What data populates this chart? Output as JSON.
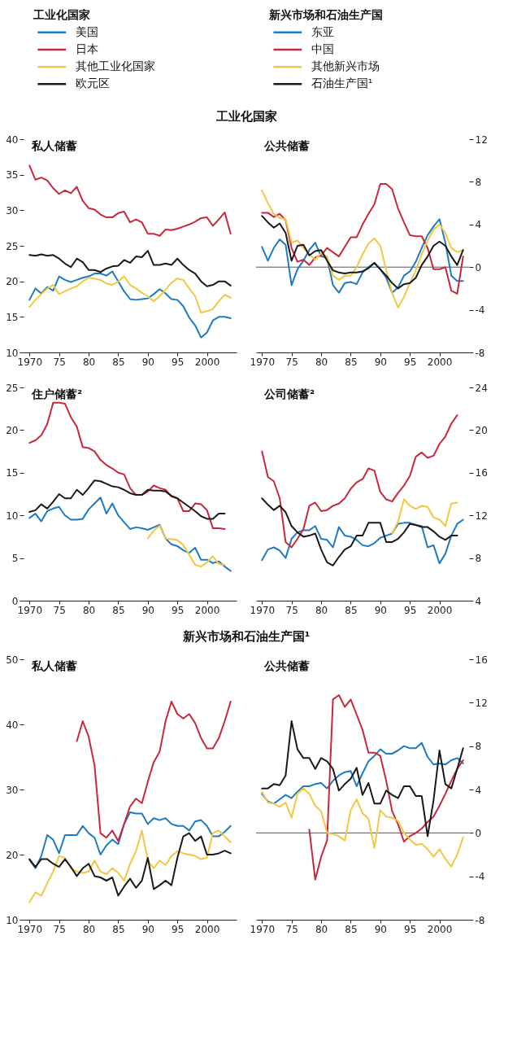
{
  "chart_data": [
    {
      "type": "line",
      "title": "私人储蓄",
      "annotations": [
        "工业化国家"
      ],
      "legend": "top",
      "legend_title": "工业化国家",
      "x": [
        1970,
        1971,
        1972,
        1973,
        1974,
        1975,
        1976,
        1977,
        1978,
        1979,
        1980,
        1981,
        1982,
        1983,
        1984,
        1985,
        1986,
        1987,
        1988,
        1989,
        1990,
        1991,
        1992,
        1993,
        1994,
        1995,
        1996,
        1997,
        1998,
        1999,
        2000,
        2001,
        2002,
        2003,
        2004
      ],
      "xlim": [
        1969,
        2005
      ],
      "xticks": [
        1970,
        {
          "value": 1975,
          "label": "75"
        },
        {
          "value": 1980,
          "label": "80"
        },
        {
          "value": 1985,
          "label": "85"
        },
        {
          "value": 1990,
          "label": "90"
        },
        {
          "value": 1995,
          "label": "95"
        },
        2000
      ],
      "ylim": [
        10,
        40
      ],
      "yticks": [
        10,
        15,
        20,
        25,
        30,
        35,
        40
      ],
      "series": [
        {
          "name": "美国",
          "color": "#1f7bc1",
          "values": [
            17.4,
            19.0,
            18.3,
            19.2,
            18.7,
            20.7,
            20.2,
            19.9,
            20.2,
            20.5,
            20.7,
            21.1,
            21.1,
            20.8,
            21.4,
            20.0,
            18.6,
            17.5,
            17.4,
            17.5,
            17.6,
            18.2,
            18.9,
            18.3,
            17.5,
            17.4,
            16.5,
            14.9,
            13.8,
            12.1,
            12.8,
            14.5,
            15.0,
            15.0,
            14.8
          ]
        },
        {
          "name": "日本",
          "color": "#c8283c",
          "values": [
            36.3,
            34.3,
            34.6,
            34.2,
            33.1,
            32.3,
            32.8,
            32.4,
            33.3,
            31.3,
            30.3,
            30.1,
            29.4,
            29.0,
            29.0,
            29.6,
            29.8,
            28.3,
            28.7,
            28.3,
            26.7,
            26.7,
            26.4,
            27.3,
            27.2,
            27.4,
            27.7,
            28.0,
            28.4,
            28.9,
            29.0,
            27.8,
            28.7,
            29.7,
            26.7
          ]
        },
        {
          "name": "其他工业化国家",
          "color": "#f2c744",
          "values": [
            16.4,
            17.4,
            18.2,
            19.0,
            19.5,
            18.2,
            18.6,
            19.0,
            19.3,
            20.0,
            20.5,
            20.4,
            20.2,
            19.7,
            19.5,
            20.0,
            20.7,
            19.5,
            19.0,
            18.4,
            17.9,
            17.2,
            17.9,
            18.8,
            19.8,
            20.4,
            20.2,
            19.0,
            17.9,
            15.6,
            15.8,
            16.1,
            17.2,
            18.1,
            17.7
          ]
        },
        {
          "name": "欧元区",
          "color": "#1a1a1a",
          "values": [
            23.7,
            23.6,
            23.8,
            23.6,
            23.7,
            23.2,
            22.5,
            22.0,
            23.2,
            22.7,
            21.6,
            21.6,
            21.3,
            21.8,
            22.1,
            22.2,
            23.0,
            22.6,
            23.5,
            23.4,
            24.3,
            22.3,
            22.3,
            22.5,
            22.3,
            23.2,
            22.3,
            21.6,
            21.1,
            20.0,
            19.3,
            19.5,
            20.0,
            20.0,
            19.4
          ]
        }
      ]
    },
    {
      "type": "line",
      "title": "公共储蓄",
      "x": [
        1970,
        1971,
        1972,
        1973,
        1974,
        1975,
        1976,
        1977,
        1978,
        1979,
        1980,
        1981,
        1982,
        1983,
        1984,
        1985,
        1986,
        1987,
        1988,
        1989,
        1990,
        1991,
        1992,
        1993,
        1994,
        1995,
        1996,
        1997,
        1998,
        1999,
        2000,
        2001,
        2002,
        2003,
        2004
      ],
      "xlim": [
        1969,
        2005
      ],
      "xticks": [
        1970,
        {
          "value": 1975,
          "label": "75"
        },
        {
          "value": 1980,
          "label": "80"
        },
        {
          "value": 1985,
          "label": "85"
        },
        {
          "value": 1990,
          "label": "90"
        },
        {
          "value": 1995,
          "label": "95"
        },
        2000
      ],
      "ylim": [
        -8,
        12
      ],
      "yticks": [
        -8,
        -4,
        0,
        4,
        8,
        12
      ],
      "ref_lines": [
        {
          "axis": "y",
          "value": 0
        }
      ],
      "series": [
        {
          "color": "#1f7bc1",
          "values": [
            1.9,
            0.6,
            1.8,
            2.6,
            2.1,
            -1.7,
            -0.2,
            0.6,
            1.6,
            2.3,
            1.0,
            0.9,
            -1.7,
            -2.4,
            -1.5,
            -1.4,
            -1.6,
            -0.5,
            0.0,
            0.4,
            -0.2,
            -1.0,
            -2.4,
            -1.9,
            -0.8,
            -0.4,
            0.5,
            1.8,
            3.0,
            3.8,
            4.5,
            2.3,
            -0.8,
            -1.3,
            -1.3
          ]
        },
        {
          "color": "#c8283c",
          "values": [
            5.1,
            5.1,
            4.7,
            5.0,
            4.4,
            1.8,
            0.5,
            0.7,
            0.2,
            0.9,
            1.1,
            1.8,
            1.4,
            1.0,
            1.9,
            2.8,
            2.8,
            4.0,
            5.0,
            5.9,
            7.8,
            7.8,
            7.3,
            5.5,
            4.2,
            3.0,
            2.9,
            2.9,
            1.8,
            -0.2,
            -0.2,
            0.0,
            -2.2,
            -2.5,
            1.0
          ]
        },
        {
          "color": "#f2c744",
          "values": [
            7.2,
            6.0,
            5.0,
            4.6,
            4.5,
            2.3,
            2.5,
            1.8,
            1.2,
            0.7,
            1.3,
            1.0,
            -0.8,
            -1.2,
            -0.8,
            -0.8,
            0.0,
            1.2,
            2.2,
            2.7,
            2.0,
            -0.3,
            -2.4,
            -3.8,
            -2.8,
            -1.5,
            -0.3,
            1.2,
            2.5,
            3.5,
            4.0,
            3.2,
            1.8,
            1.4,
            1.6
          ]
        },
        {
          "color": "#1a1a1a",
          "values": [
            4.8,
            4.2,
            3.7,
            4.1,
            3.2,
            0.6,
            2.0,
            2.1,
            1.1,
            1.5,
            1.6,
            0.6,
            -0.3,
            -0.5,
            -0.6,
            -0.5,
            -0.5,
            -0.4,
            -0.1,
            0.4,
            -0.2,
            -0.8,
            -1.5,
            -2.0,
            -1.6,
            -1.5,
            -1.0,
            0.2,
            1.0,
            2.0,
            2.4,
            2.0,
            1.0,
            0.2,
            1.6
          ]
        }
      ]
    },
    {
      "type": "line",
      "title": "住户储蓄²",
      "x": [
        1970,
        1971,
        1972,
        1973,
        1974,
        1975,
        1976,
        1977,
        1978,
        1979,
        1980,
        1981,
        1982,
        1983,
        1984,
        1985,
        1986,
        1987,
        1988,
        1989,
        1990,
        1991,
        1992,
        1993,
        1994,
        1995,
        1996,
        1997,
        1998,
        1999,
        2000,
        2001,
        2002,
        2003,
        2004
      ],
      "xlim": [
        1969,
        2005
      ],
      "xticks": [
        1970,
        {
          "value": 1975,
          "label": "75"
        },
        {
          "value": 1980,
          "label": "80"
        },
        {
          "value": 1985,
          "label": "85"
        },
        {
          "value": 1990,
          "label": "90"
        },
        {
          "value": 1995,
          "label": "95"
        },
        2000
      ],
      "ylim": [
        0,
        25
      ],
      "yticks": [
        0,
        5,
        10,
        15,
        20,
        25
      ],
      "series": [
        {
          "color": "#1f7bc1",
          "values": [
            9.7,
            10.2,
            9.3,
            10.5,
            10.8,
            11.0,
            10.0,
            9.5,
            9.5,
            9.6,
            10.7,
            11.4,
            12.1,
            10.2,
            11.4,
            10.0,
            9.2,
            8.4,
            8.6,
            8.5,
            8.3,
            8.6,
            8.9,
            7.3,
            6.6,
            6.4,
            5.9,
            5.6,
            6.2,
            4.8,
            4.8,
            4.4,
            4.6,
            4.0,
            3.5
          ]
        },
        {
          "color": "#c8283c",
          "values": [
            18.5,
            18.8,
            19.4,
            20.7,
            23.2,
            23.2,
            23.1,
            21.5,
            20.4,
            18.0,
            17.9,
            17.5,
            16.5,
            15.9,
            15.5,
            15.0,
            14.8,
            13.2,
            12.4,
            12.4,
            12.8,
            13.5,
            13.2,
            13.0,
            12.2,
            12.0,
            10.5,
            10.5,
            11.4,
            11.3,
            10.6,
            8.5,
            8.5,
            8.4,
            null
          ]
        },
        {
          "color": "#f2c744",
          "values": [
            null,
            null,
            null,
            null,
            null,
            null,
            null,
            null,
            null,
            null,
            null,
            null,
            null,
            null,
            null,
            null,
            null,
            null,
            null,
            null,
            7.3,
            8.2,
            8.8,
            7.3,
            7.2,
            7.1,
            6.5,
            5.4,
            4.2,
            4.0,
            4.5,
            5.2,
            4.3,
            4.2,
            null
          ]
        },
        {
          "color": "#1a1a1a",
          "values": [
            10.4,
            10.6,
            11.3,
            10.8,
            11.6,
            12.5,
            12.0,
            12.0,
            13.0,
            12.4,
            13.2,
            14.1,
            14.0,
            13.7,
            13.4,
            13.3,
            13.0,
            12.6,
            12.4,
            12.4,
            13.0,
            12.9,
            12.9,
            12.8,
            12.3,
            12.0,
            11.5,
            11.0,
            10.5,
            9.9,
            9.6,
            9.6,
            10.2,
            10.2,
            null
          ]
        }
      ]
    },
    {
      "type": "line",
      "title": "公司储蓄²",
      "x": [
        1970,
        1971,
        1972,
        1973,
        1974,
        1975,
        1976,
        1977,
        1978,
        1979,
        1980,
        1981,
        1982,
        1983,
        1984,
        1985,
        1986,
        1987,
        1988,
        1989,
        1990,
        1991,
        1992,
        1993,
        1994,
        1995,
        1996,
        1997,
        1998,
        1999,
        2000,
        2001,
        2002,
        2003,
        2004
      ],
      "xlim": [
        1969,
        2005
      ],
      "xticks": [
        1970,
        {
          "value": 1975,
          "label": "75"
        },
        {
          "value": 1980,
          "label": "80"
        },
        {
          "value": 1985,
          "label": "85"
        },
        {
          "value": 1990,
          "label": "90"
        },
        {
          "value": 1995,
          "label": "95"
        },
        2000
      ],
      "ylim": [
        4,
        24
      ],
      "yticks": [
        4,
        8,
        12,
        16,
        20,
        24
      ],
      "series": [
        {
          "color": "#1f7bc1",
          "values": [
            7.8,
            8.8,
            9.0,
            8.7,
            8.0,
            9.8,
            10.4,
            10.6,
            10.6,
            11.0,
            9.8,
            9.7,
            9.0,
            10.9,
            10.1,
            10.0,
            9.7,
            9.2,
            9.1,
            9.4,
            9.9,
            10.1,
            10.3,
            11.2,
            11.3,
            11.3,
            11.1,
            11.0,
            9.0,
            9.2,
            7.5,
            8.4,
            10.1,
            11.2,
            11.6
          ]
        },
        {
          "color": "#c8283c",
          "values": [
            18.0,
            15.6,
            15.2,
            13.6,
            9.5,
            9.0,
            9.8,
            10.7,
            12.9,
            13.2,
            12.4,
            12.5,
            12.9,
            13.1,
            13.6,
            14.5,
            15.1,
            15.4,
            16.4,
            16.2,
            14.2,
            13.5,
            13.3,
            14.1,
            14.8,
            15.7,
            17.5,
            17.9,
            17.4,
            17.6,
            18.7,
            19.4,
            20.6,
            21.4,
            null
          ]
        },
        {
          "color": "#f2c744",
          "values": [
            null,
            null,
            null,
            null,
            null,
            null,
            null,
            null,
            null,
            null,
            null,
            null,
            null,
            null,
            null,
            null,
            null,
            null,
            null,
            null,
            null,
            null,
            10.3,
            11.4,
            13.5,
            12.9,
            12.6,
            12.9,
            12.8,
            11.8,
            11.6,
            11.0,
            13.1,
            13.2,
            null
          ]
        },
        {
          "color": "#1a1a1a",
          "values": [
            13.6,
            13.0,
            12.5,
            12.9,
            12.3,
            11.0,
            10.4,
            10.0,
            10.1,
            10.3,
            8.8,
            7.6,
            7.3,
            8.1,
            8.8,
            9.1,
            10.1,
            10.1,
            11.3,
            11.3,
            11.3,
            9.5,
            9.5,
            9.8,
            10.4,
            11.2,
            11.1,
            10.9,
            10.9,
            10.5,
            10.0,
            9.7,
            10.1,
            10.1,
            null
          ]
        }
      ]
    },
    {
      "type": "line",
      "title": "私人储蓄",
      "annotations": [
        "新兴市场和石油生产国¹"
      ],
      "legend": "top",
      "legend_title": "新兴市场和石油生产国",
      "x": [
        1970,
        1971,
        1972,
        1973,
        1974,
        1975,
        1976,
        1977,
        1978,
        1979,
        1980,
        1981,
        1982,
        1983,
        1984,
        1985,
        1986,
        1987,
        1988,
        1989,
        1990,
        1991,
        1992,
        1993,
        1994,
        1995,
        1996,
        1997,
        1998,
        1999,
        2000,
        2001,
        2002,
        2003,
        2004
      ],
      "xlim": [
        1969,
        2005
      ],
      "xticks": [
        1970,
        {
          "value": 1975,
          "label": "75"
        },
        {
          "value": 1980,
          "label": "80"
        },
        {
          "value": 1985,
          "label": "85"
        },
        {
          "value": 1990,
          "label": "90"
        },
        {
          "value": 1995,
          "label": "95"
        },
        2000
      ],
      "ylim": [
        10,
        50
      ],
      "yticks": [
        10,
        20,
        30,
        40,
        50
      ],
      "series": [
        {
          "name": "东亚",
          "color": "#1f7bc1",
          "values": [
            19.2,
            17.9,
            19.8,
            23.0,
            22.3,
            20.2,
            23.0,
            23.0,
            23.0,
            24.4,
            23.3,
            22.6,
            20.0,
            21.4,
            22.3,
            21.6,
            24.7,
            26.5,
            26.3,
            26.3,
            24.7,
            25.6,
            25.3,
            25.6,
            24.7,
            24.4,
            24.4,
            23.7,
            25.1,
            25.3,
            24.4,
            22.8,
            22.8,
            23.5,
            24.4
          ]
        },
        {
          "name": "中国",
          "color": "#c8283c",
          "values": [
            null,
            null,
            null,
            null,
            null,
            null,
            null,
            null,
            37.4,
            40.5,
            38.1,
            33.7,
            23.3,
            22.6,
            23.7,
            22.1,
            24.7,
            27.4,
            28.6,
            27.9,
            31.2,
            34.2,
            35.8,
            40.5,
            43.5,
            41.6,
            40.9,
            41.6,
            40.2,
            37.9,
            36.3,
            36.3,
            37.9,
            40.5,
            43.5
          ]
        },
        {
          "name": "其他新兴市场",
          "color": "#f2c744",
          "values": [
            12.7,
            14.2,
            13.7,
            15.6,
            17.4,
            19.8,
            19.5,
            17.9,
            17.4,
            17.2,
            17.4,
            19.1,
            17.4,
            17.0,
            17.9,
            17.2,
            16.0,
            18.6,
            20.5,
            23.7,
            19.1,
            17.9,
            19.1,
            18.4,
            19.8,
            20.5,
            20.2,
            20.0,
            19.8,
            19.3,
            19.5,
            23.3,
            23.7,
            22.8,
            21.9
          ]
        },
        {
          "name": "石油生产国¹",
          "color": "#1a1a1a",
          "values": [
            19.3,
            18.1,
            19.3,
            19.3,
            18.6,
            18.1,
            19.3,
            18.1,
            16.7,
            17.9,
            18.6,
            16.7,
            16.5,
            16.0,
            16.5,
            13.7,
            15.1,
            16.3,
            14.9,
            16.0,
            19.5,
            14.7,
            15.3,
            16.0,
            15.3,
            19.5,
            22.8,
            23.3,
            22.1,
            22.8,
            20.0,
            20.0,
            20.2,
            20.6,
            20.2
          ]
        }
      ]
    },
    {
      "type": "line",
      "title": "公共储蓄",
      "x": [
        1970,
        1971,
        1972,
        1973,
        1974,
        1975,
        1976,
        1977,
        1978,
        1979,
        1980,
        1981,
        1982,
        1983,
        1984,
        1985,
        1986,
        1987,
        1988,
        1989,
        1990,
        1991,
        1992,
        1993,
        1994,
        1995,
        1996,
        1997,
        1998,
        1999,
        2000,
        2001,
        2002,
        2003,
        2004
      ],
      "xlim": [
        1969,
        2005
      ],
      "xticks": [
        1970,
        {
          "value": 1975,
          "label": "75"
        },
        {
          "value": 1980,
          "label": "80"
        },
        {
          "value": 1985,
          "label": "85"
        },
        {
          "value": 1990,
          "label": "90"
        },
        {
          "value": 1995,
          "label": "95"
        },
        2000
      ],
      "ylim": [
        -8,
        16
      ],
      "yticks": [
        -8,
        -4,
        0,
        4,
        8,
        12,
        16
      ],
      "ref_lines": [
        {
          "axis": "y",
          "value": 0
        }
      ],
      "series": [
        {
          "color": "#1f7bc1",
          "values": [
            3.6,
            2.9,
            2.7,
            3.1,
            3.5,
            3.2,
            3.8,
            4.3,
            4.3,
            4.5,
            4.6,
            4.1,
            4.8,
            5.3,
            5.6,
            5.7,
            4.3,
            5.5,
            6.6,
            7.1,
            7.7,
            7.3,
            7.3,
            7.6,
            8.0,
            7.8,
            7.8,
            8.3,
            7.0,
            6.3,
            6.4,
            6.3,
            6.7,
            6.9,
            6.4
          ]
        },
        {
          "color": "#c8283c",
          "values": [
            null,
            null,
            null,
            null,
            null,
            null,
            null,
            null,
            0.3,
            -4.3,
            -2.2,
            -0.7,
            12.3,
            12.7,
            11.6,
            12.3,
            10.9,
            9.5,
            7.4,
            7.4,
            7.1,
            4.8,
            2.0,
            0.8,
            -0.8,
            -0.3,
            0.0,
            0.4,
            1.0,
            1.5,
            2.5,
            3.6,
            4.8,
            5.9,
            6.7
          ]
        },
        {
          "color": "#f2c744",
          "values": [
            3.8,
            2.8,
            2.7,
            2.4,
            2.8,
            1.4,
            3.6,
            4.1,
            3.6,
            2.5,
            2.0,
            0.0,
            -0.1,
            -0.3,
            -0.7,
            2.1,
            3.1,
            1.8,
            1.3,
            -1.4,
            2.1,
            1.5,
            1.4,
            1.1,
            0.0,
            -0.6,
            -1.1,
            -1.0,
            -1.5,
            -2.2,
            -1.5,
            -2.4,
            -3.1,
            -2.0,
            -0.4
          ]
        },
        {
          "color": "#1a1a1a",
          "values": [
            4.1,
            4.1,
            4.5,
            4.4,
            5.3,
            10.3,
            7.7,
            6.9,
            6.9,
            5.9,
            6.9,
            6.6,
            5.9,
            3.9,
            4.5,
            5.0,
            6.0,
            3.5,
            4.6,
            2.7,
            2.7,
            3.9,
            3.5,
            3.2,
            4.3,
            4.3,
            3.4,
            3.4,
            -0.3,
            3.0,
            7.6,
            4.5,
            4.1,
            5.9,
            7.8
          ]
        }
      ]
    }
  ]
}
